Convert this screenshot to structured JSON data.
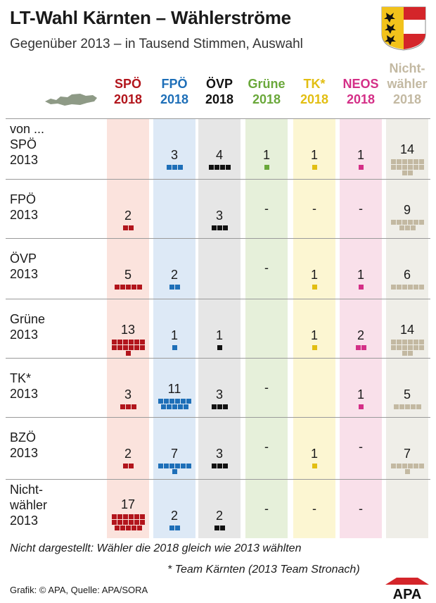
{
  "title": "LT-Wahl Kärnten – Wählerströme",
  "subtitle": "Gegenüber 2013 – in Tausend Stimmen, Auswahl",
  "chart_data": {
    "type": "table",
    "title": "LT-Wahl Kärnten – Wählerströme",
    "subtitle": "Gegenüber 2013 – in Tausend Stimmen, Auswahl",
    "row_header": "von ...",
    "columns": [
      {
        "key": "spo",
        "line1": "SPÖ",
        "line2": "2018",
        "color": "#b2151c",
        "bg": "#fbe3dd"
      },
      {
        "key": "fpo",
        "line1": "FPÖ",
        "line2": "2018",
        "color": "#1e6fb8",
        "bg": "#dde9f6"
      },
      {
        "key": "ovp",
        "line1": "ÖVP",
        "line2": "2018",
        "color": "#111111",
        "bg": "#e6e6e6"
      },
      {
        "key": "gruene",
        "line1": "Grüne",
        "line2": "2018",
        "color": "#6aa83a",
        "bg": "#e6f0da"
      },
      {
        "key": "tk",
        "line1": "TK*",
        "line2": "2018",
        "color": "#e2be12",
        "bg": "#fcf6d2"
      },
      {
        "key": "neos",
        "line1": "NEOS",
        "line2": "2018",
        "color": "#d42f87",
        "bg": "#f9e0ea"
      },
      {
        "key": "nw",
        "line1": "Nicht-",
        "line1b": "wähler",
        "line2": "2018",
        "color": "#c3b9a2",
        "bg": "#efeee8"
      }
    ],
    "rows": [
      {
        "label1": "SPÖ",
        "label2": "2013",
        "values": [
          null,
          3,
          4,
          1,
          1,
          1,
          14
        ]
      },
      {
        "label1": "FPÖ",
        "label2": "2013",
        "values": [
          2,
          null,
          3,
          "-",
          "-",
          "-",
          9
        ]
      },
      {
        "label1": "ÖVP",
        "label2": "2013",
        "values": [
          5,
          2,
          null,
          "-",
          1,
          1,
          6
        ]
      },
      {
        "label1": "Grüne",
        "label2": "2013",
        "values": [
          13,
          1,
          1,
          null,
          1,
          2,
          14
        ]
      },
      {
        "label1": "TK*",
        "label2": "2013",
        "values": [
          3,
          11,
          3,
          "-",
          null,
          1,
          5
        ]
      },
      {
        "label1": "BZÖ",
        "label2": "2013",
        "values": [
          2,
          7,
          3,
          "-",
          1,
          "-",
          7
        ]
      },
      {
        "label1": "Nicht-",
        "label1b": "wähler",
        "label2": "2013",
        "values": [
          17,
          2,
          2,
          "-",
          "-",
          "-",
          null
        ]
      }
    ]
  },
  "footnote_main": "Nicht dargestellt: Wähler die 2018 gleich wie 2013 wählten",
  "footnote_tk": "* Team Kärnten (2013 Team Stronach)",
  "credit": "Grafik: © APA, Quelle: APA/SORA",
  "logo_text": "APA"
}
